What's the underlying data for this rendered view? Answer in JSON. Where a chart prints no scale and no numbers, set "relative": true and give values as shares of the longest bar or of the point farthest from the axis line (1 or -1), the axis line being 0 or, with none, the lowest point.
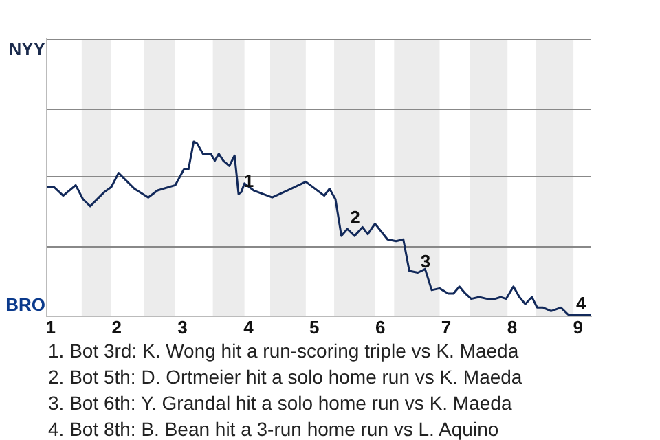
{
  "chart_data": {
    "type": "line",
    "relative": true,
    "x": [
      0.94,
      1.05,
      1.19,
      1.38,
      1.49,
      1.6,
      1.81,
      1.92,
      2.03,
      2.27,
      2.48,
      2.62,
      2.89,
      3.02,
      3.09,
      3.17,
      3.22,
      3.31,
      3.43,
      3.49,
      3.55,
      3.62,
      3.71,
      3.79,
      3.85,
      3.89,
      3.94,
      4.08,
      4.36,
      4.59,
      4.87,
      5.15,
      5.23,
      5.32,
      5.41,
      5.5,
      5.61,
      5.73,
      5.81,
      5.92,
      6.11,
      6.24,
      6.35,
      6.44,
      6.57,
      6.68,
      6.78,
      6.9,
      7.03,
      7.11,
      7.2,
      7.29,
      7.38,
      7.5,
      7.62,
      7.74,
      7.83,
      7.91,
      8.02,
      8.11,
      8.2,
      8.3,
      8.38,
      8.47,
      8.59,
      8.74,
      8.85,
      8.93,
      9.2
    ],
    "series": [
      {
        "color": "#12295a",
        "values": [
          0.74,
          0.74,
          0.69,
          0.75,
          0.67,
          0.63,
          0.71,
          0.74,
          0.82,
          0.73,
          0.68,
          0.72,
          0.75,
          0.84,
          0.84,
          1,
          0.99,
          0.93,
          0.93,
          0.89,
          0.93,
          0.89,
          0.86,
          0.92,
          0.7,
          0.71,
          0.76,
          0.72,
          0.68,
          0.72,
          0.77,
          0.69,
          0.73,
          0.67,
          0.46,
          0.5,
          0.46,
          0.51,
          0.47,
          0.53,
          0.44,
          0.43,
          0.44,
          0.26,
          0.25,
          0.27,
          0.15,
          0.16,
          0.13,
          0.13,
          0.17,
          0.13,
          0.1,
          0.11,
          0.1,
          0.1,
          0.11,
          0.1,
          0.17,
          0.11,
          0.07,
          0.11,
          0.05,
          0.05,
          0.03,
          0.05,
          0.01,
          0.01,
          0.01
        ]
      }
    ],
    "xlim": [
      0.94,
      9.2
    ],
    "xticks": [
      1,
      2,
      3,
      4,
      5,
      6,
      7,
      8,
      9
    ],
    "ref_lines": [
      {
        "axis": "y",
        "value": 0.4,
        "color": "#888888"
      },
      {
        "axis": "y",
        "value": 0.8,
        "color": "#888888"
      },
      {
        "axis": "y",
        "value": 1.19,
        "color": "#888888"
      },
      {
        "axis": "y",
        "value": 1.59,
        "color": "#888888"
      }
    ],
    "bands": [
      {
        "axis": "x",
        "from": 1.47,
        "to": 1.92,
        "color": "#ececec"
      },
      {
        "axis": "x",
        "from": 2.42,
        "to": 2.89,
        "color": "#ececec"
      },
      {
        "axis": "x",
        "from": 3.46,
        "to": 3.94,
        "color": "#ececec"
      },
      {
        "axis": "x",
        "from": 4.33,
        "to": 4.87,
        "color": "#ececec"
      },
      {
        "axis": "x",
        "from": 5.3,
        "to": 5.92,
        "color": "#ececec"
      },
      {
        "axis": "x",
        "from": 6.21,
        "to": 6.9,
        "color": "#ececec"
      },
      {
        "axis": "x",
        "from": 7.36,
        "to": 7.93,
        "color": "#ececec"
      },
      {
        "axis": "x",
        "from": 8.36,
        "to": 8.93,
        "color": "#ececec"
      }
    ],
    "annotations": [
      "NYY",
      "BRO",
      {
        "text": "1",
        "x": 3.89,
        "y": 0.71
      },
      {
        "text": "2",
        "x": 5.5,
        "y": 0.5
      },
      {
        "text": "3",
        "x": 6.57,
        "y": 0.25
      },
      {
        "text": "4",
        "x": 8.93,
        "y": 0.01
      },
      "1. Bot 3rd: K. Wong hit a run-scoring triple vs K. Maeda",
      "2. Bot 5th: D. Ortmeier hit a solo home run vs K. Maeda",
      "3. Bot 6th: Y. Grandal hit a solo home run vs K. Maeda",
      "4. Bot 8th: B. Bean hit a 3-run home run vs L. Aquino"
    ]
  }
}
